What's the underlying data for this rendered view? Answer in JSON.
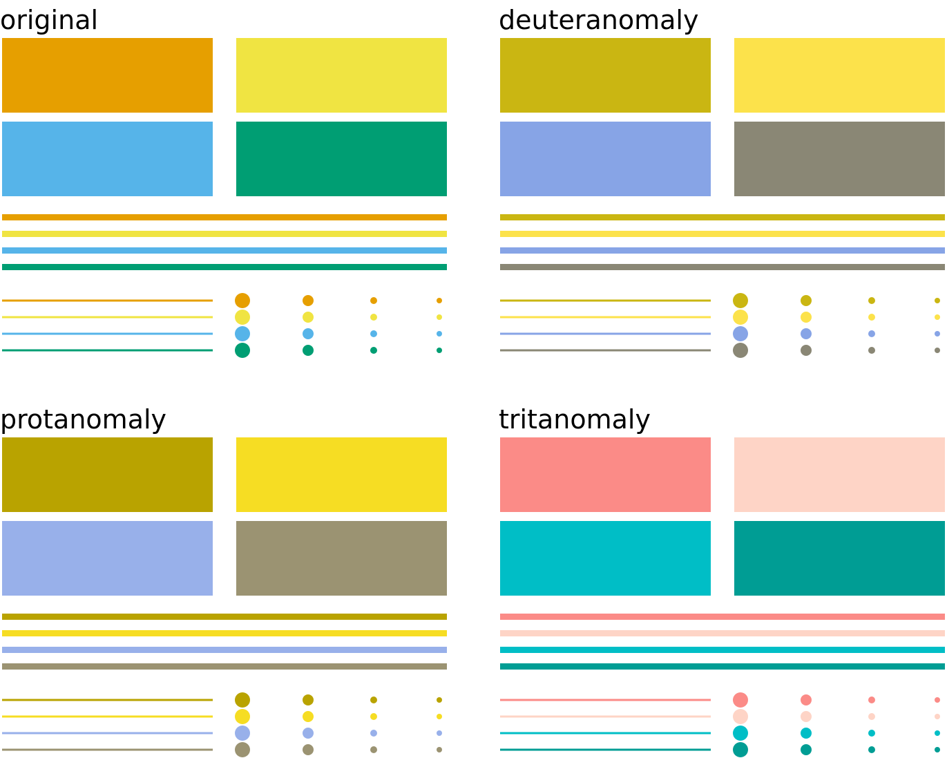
{
  "panels": [
    {
      "title": "original",
      "colors": [
        "#E69F00",
        "#F0E442",
        "#56B4E9",
        "#009E73"
      ]
    },
    {
      "title": "deuteranomaly",
      "colors": [
        "#CAB612",
        "#FCE24B",
        "#87A4E6",
        "#8A8775"
      ]
    },
    {
      "title": "protanomaly",
      "colors": [
        "#B9A300",
        "#F6DD23",
        "#98B0EA",
        "#9B9372"
      ]
    },
    {
      "title": "tritanomaly",
      "colors": [
        "#FB8B87",
        "#FED4C6",
        "#00BEC6",
        "#009D94"
      ]
    }
  ]
}
